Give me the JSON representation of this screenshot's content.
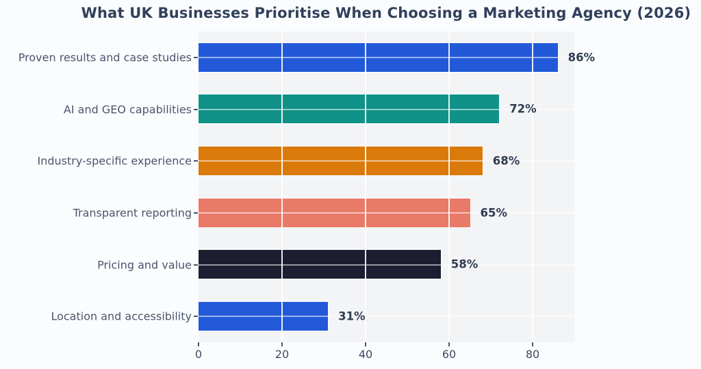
{
  "chart_data": {
    "type": "bar",
    "orientation": "horizontal",
    "title": "What UK Businesses Prioritise When Choosing a Marketing Agency (2026)",
    "categories": [
      "Proven results and case studies",
      "AI and GEO capabilities",
      "Industry-specific experience",
      "Transparent reporting",
      "Pricing and value",
      "Location and accessibility"
    ],
    "values": [
      86,
      72,
      68,
      65,
      58,
      31
    ],
    "value_labels": [
      "86%",
      "72%",
      "68%",
      "65%",
      "58%",
      "31%"
    ],
    "bar_colors": [
      "#2259d9",
      "#109288",
      "#da7a0b",
      "#e97a68",
      "#1d1d31",
      "#2259d9"
    ],
    "xlim": [
      0,
      90
    ],
    "x_ticks": [
      0,
      20,
      40,
      60,
      80
    ],
    "grid": true,
    "legend": null,
    "xlabel": "",
    "ylabel": "",
    "colors": {
      "figure_background": "#fbfcfe",
      "plot_background": "#f3f4f6",
      "vertical_gridline": "rgba(255,255,255,0.9)",
      "horizontal_gridline": "rgba(255,255,255,0.55)",
      "title_color": "#31405a",
      "category_label_color": "#4a566b",
      "value_label_color": "#2f3c52",
      "tick_label_color": "#3d4a61",
      "tick_mark_color": "#4a566b"
    }
  }
}
